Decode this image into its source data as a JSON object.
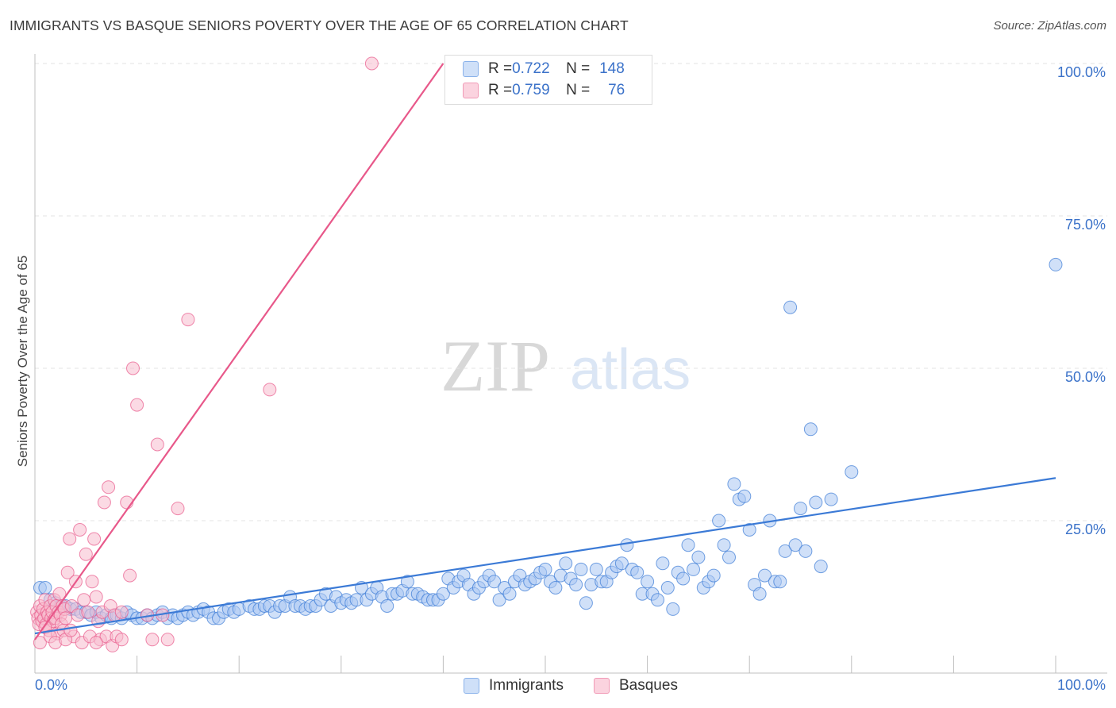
{
  "header": {
    "title": "IMMIGRANTS VS BASQUE SENIORS POVERTY OVER THE AGE OF 65 CORRELATION CHART",
    "source": "Source: ZipAtlas.com"
  },
  "watermark": {
    "zip": "ZIP",
    "atlas": "atlas"
  },
  "legend": {
    "rows": [
      {
        "r_label": "R = ",
        "r_value": "0.722",
        "n_label": "N = ",
        "n_value": "148",
        "color": "#9dbff0"
      },
      {
        "r_label": "R = ",
        "r_value": "0.759",
        "n_label": "N = ",
        "n_value": "76",
        "color": "#f6b3c7"
      }
    ]
  },
  "bottom_legend": {
    "items": [
      {
        "label": "Immigrants",
        "color": "#9dbff0"
      },
      {
        "label": "Basques",
        "color": "#f6b3c7"
      }
    ]
  },
  "chart_data": {
    "type": "scatter",
    "title": "IMMIGRANTS VS BASQUE SENIORS POVERTY OVER THE AGE OF 65 CORRELATION CHART",
    "xlabel": "",
    "ylabel": "Seniors Poverty Over the Age of 65",
    "xlim": [
      0,
      100
    ],
    "ylim": [
      0,
      100
    ],
    "x_tick_labels": [
      "0.0%",
      "100.0%"
    ],
    "y_tick_labels": [
      "25.0%",
      "50.0%",
      "75.0%",
      "100.0%"
    ],
    "y_ticks": [
      25,
      50,
      75,
      100
    ],
    "grid": true,
    "series": [
      {
        "name": "Immigrants",
        "color": "#3b7ad6",
        "fill": "#a9c7f2",
        "R": 0.722,
        "N": 148,
        "trendline": {
          "x": [
            0,
            100
          ],
          "y": [
            6.5,
            32
          ]
        },
        "points": [
          [
            0.5,
            14
          ],
          [
            1,
            14
          ],
          [
            1.5,
            12
          ],
          [
            2,
            11.5
          ],
          [
            2.5,
            11
          ],
          [
            3,
            11
          ],
          [
            3.5,
            10.5
          ],
          [
            4,
            10.5
          ],
          [
            4.5,
            10
          ],
          [
            5,
            10
          ],
          [
            5.5,
            9.5
          ],
          [
            6,
            10
          ],
          [
            6.5,
            9
          ],
          [
            7,
            9.5
          ],
          [
            7.5,
            9
          ],
          [
            8,
            9.5
          ],
          [
            8.5,
            9
          ],
          [
            9,
            10
          ],
          [
            9.5,
            9.5
          ],
          [
            10,
            9
          ],
          [
            10.5,
            9
          ],
          [
            11,
            9.5
          ],
          [
            11.5,
            9
          ],
          [
            12,
            9.5
          ],
          [
            12.5,
            10
          ],
          [
            13,
            9
          ],
          [
            13.5,
            9.5
          ],
          [
            14,
            9
          ],
          [
            14.5,
            9.5
          ],
          [
            15,
            10
          ],
          [
            15.5,
            9.5
          ],
          [
            16,
            10
          ],
          [
            16.5,
            10.5
          ],
          [
            17,
            10
          ],
          [
            17.5,
            9
          ],
          [
            18,
            9
          ],
          [
            18.5,
            10
          ],
          [
            19,
            10.5
          ],
          [
            19.5,
            10
          ],
          [
            20,
            10.5
          ],
          [
            21,
            11
          ],
          [
            21.5,
            10.5
          ],
          [
            22,
            10.5
          ],
          [
            22.5,
            11
          ],
          [
            23,
            11
          ],
          [
            23.5,
            10
          ],
          [
            24,
            11
          ],
          [
            24.5,
            11
          ],
          [
            25,
            12.5
          ],
          [
            25.5,
            11
          ],
          [
            26,
            11
          ],
          [
            26.5,
            10.5
          ],
          [
            27,
            11
          ],
          [
            27.5,
            11
          ],
          [
            28,
            12
          ],
          [
            28.5,
            13
          ],
          [
            29,
            11
          ],
          [
            29.5,
            12.5
          ],
          [
            30,
            11.5
          ],
          [
            30.5,
            12
          ],
          [
            31,
            11.5
          ],
          [
            31.5,
            12
          ],
          [
            32,
            14
          ],
          [
            32.5,
            12
          ],
          [
            33,
            13
          ],
          [
            33.5,
            14
          ],
          [
            34,
            12.5
          ],
          [
            34.5,
            11
          ],
          [
            35,
            13
          ],
          [
            35.5,
            13
          ],
          [
            36,
            13.5
          ],
          [
            36.5,
            15
          ],
          [
            37,
            13
          ],
          [
            37.5,
            13
          ],
          [
            38,
            12.5
          ],
          [
            38.5,
            12
          ],
          [
            39,
            12
          ],
          [
            39.5,
            12
          ],
          [
            40,
            13
          ],
          [
            40.5,
            15.5
          ],
          [
            41,
            14
          ],
          [
            41.5,
            15
          ],
          [
            42,
            16
          ],
          [
            42.5,
            14.5
          ],
          [
            43,
            13
          ],
          [
            43.5,
            14
          ],
          [
            44,
            15
          ],
          [
            44.5,
            16
          ],
          [
            45,
            15
          ],
          [
            45.5,
            12
          ],
          [
            46,
            14
          ],
          [
            46.5,
            13
          ],
          [
            47,
            15
          ],
          [
            47.5,
            16
          ],
          [
            48,
            14.5
          ],
          [
            48.5,
            15
          ],
          [
            49,
            15.5
          ],
          [
            49.5,
            16.5
          ],
          [
            50,
            17
          ],
          [
            50.5,
            15
          ],
          [
            51,
            14
          ],
          [
            51.5,
            16
          ],
          [
            52,
            18
          ],
          [
            52.5,
            15.5
          ],
          [
            53,
            14.5
          ],
          [
            53.5,
            17
          ],
          [
            54,
            11.5
          ],
          [
            54.5,
            14.5
          ],
          [
            55,
            17
          ],
          [
            55.5,
            15
          ],
          [
            56,
            15
          ],
          [
            56.5,
            16.5
          ],
          [
            57,
            17.5
          ],
          [
            57.5,
            18
          ],
          [
            58,
            21
          ],
          [
            58.5,
            17
          ],
          [
            59,
            16.5
          ],
          [
            59.5,
            13
          ],
          [
            60,
            15
          ],
          [
            60.5,
            13
          ],
          [
            61,
            12
          ],
          [
            61.5,
            18
          ],
          [
            62,
            14
          ],
          [
            62.5,
            10.5
          ],
          [
            63,
            16.5
          ],
          [
            63.5,
            15.5
          ],
          [
            64,
            21
          ],
          [
            64.5,
            17
          ],
          [
            65,
            19
          ],
          [
            65.5,
            14
          ],
          [
            66,
            15
          ],
          [
            66.5,
            16
          ],
          [
            67,
            25
          ],
          [
            67.5,
            21
          ],
          [
            68,
            19
          ],
          [
            68.5,
            31
          ],
          [
            69,
            28.5
          ],
          [
            69.5,
            29
          ],
          [
            70,
            23.5
          ],
          [
            70.5,
            14.5
          ],
          [
            71,
            13
          ],
          [
            71.5,
            16
          ],
          [
            72,
            25
          ],
          [
            72.5,
            15
          ],
          [
            73,
            15
          ],
          [
            73.5,
            20
          ],
          [
            74,
            60
          ],
          [
            74.5,
            21
          ],
          [
            75,
            27
          ],
          [
            75.5,
            20
          ],
          [
            76,
            40
          ],
          [
            76.5,
            28
          ],
          [
            77,
            17.5
          ],
          [
            78,
            28.5
          ],
          [
            80,
            33
          ],
          [
            100,
            67
          ]
        ]
      },
      {
        "name": "Basques",
        "color": "#e8588a",
        "fill": "#f8bccd",
        "R": 0.759,
        "N": 76,
        "trendline": {
          "x": [
            0,
            40
          ],
          "y": [
            5.5,
            100
          ]
        },
        "points": [
          [
            0.2,
            10
          ],
          [
            0.3,
            9
          ],
          [
            0.4,
            8
          ],
          [
            0.5,
            11
          ],
          [
            0.6,
            9.5
          ],
          [
            0.7,
            8.5
          ],
          [
            0.8,
            10.5
          ],
          [
            0.9,
            9
          ],
          [
            1,
            12
          ],
          [
            1.1,
            8
          ],
          [
            1.2,
            10
          ],
          [
            1.3,
            9.5
          ],
          [
            1.4,
            7
          ],
          [
            1.5,
            11
          ],
          [
            1.6,
            9
          ],
          [
            1.7,
            10
          ],
          [
            1.8,
            8.5
          ],
          [
            1.9,
            12
          ],
          [
            2,
            9
          ],
          [
            2.1,
            11
          ],
          [
            2.2,
            6.5
          ],
          [
            2.3,
            10
          ],
          [
            2.4,
            13
          ],
          [
            2.5,
            9.5
          ],
          [
            2.6,
            8
          ],
          [
            2.7,
            11
          ],
          [
            2.8,
            7
          ],
          [
            2.9,
            10.5
          ],
          [
            3,
            9
          ],
          [
            3.2,
            16.5
          ],
          [
            3.4,
            22
          ],
          [
            3.6,
            11
          ],
          [
            3.8,
            6
          ],
          [
            4,
            15
          ],
          [
            4.2,
            9.5
          ],
          [
            4.4,
            23.5
          ],
          [
            4.6,
            5
          ],
          [
            4.8,
            12
          ],
          [
            5,
            19.5
          ],
          [
            5.2,
            10
          ],
          [
            5.4,
            6
          ],
          [
            5.6,
            15
          ],
          [
            5.8,
            22
          ],
          [
            6,
            12.5
          ],
          [
            6.2,
            8.5
          ],
          [
            6.4,
            5.5
          ],
          [
            6.6,
            10
          ],
          [
            6.8,
            28
          ],
          [
            7,
            6
          ],
          [
            7.2,
            30.5
          ],
          [
            7.4,
            11
          ],
          [
            7.6,
            4.5
          ],
          [
            7.8,
            9.5
          ],
          [
            8,
            6
          ],
          [
            8.5,
            10
          ],
          [
            9,
            28
          ],
          [
            9.3,
            16
          ],
          [
            9.6,
            50
          ],
          [
            10,
            44
          ],
          [
            11,
            9.5
          ],
          [
            11.5,
            5.5
          ],
          [
            12,
            37.5
          ],
          [
            12.5,
            9.5
          ],
          [
            13,
            5.5
          ],
          [
            14,
            27
          ],
          [
            15,
            58
          ],
          [
            23,
            46.5
          ],
          [
            33,
            100
          ],
          [
            0.5,
            5
          ],
          [
            1,
            7.5
          ],
          [
            1.5,
            6
          ],
          [
            2,
            5
          ],
          [
            3,
            5.5
          ],
          [
            3.5,
            7
          ],
          [
            6,
            5
          ],
          [
            8.5,
            5.5
          ]
        ]
      }
    ]
  }
}
